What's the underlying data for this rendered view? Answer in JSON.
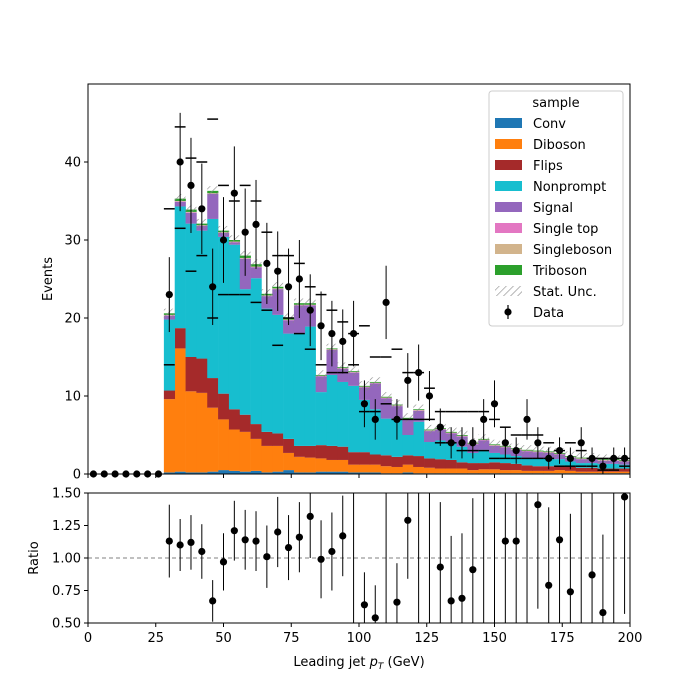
{
  "chart_data": {
    "type": "bar",
    "main": {
      "ylabel": "Events",
      "ylim": [
        0,
        50
      ],
      "yticks": [
        0,
        10,
        20,
        30,
        40
      ],
      "xlim": [
        0,
        200
      ]
    },
    "ratio": {
      "ylabel": "Ratio",
      "ylim": [
        0.5,
        1.5
      ],
      "yticks": [
        0.5,
        0.75,
        1.0,
        1.25,
        1.5
      ],
      "ytick_labels": [
        "0.50",
        "0.75",
        "1.00",
        "1.25",
        "1.50"
      ],
      "reference_line": 1.0
    },
    "xlabel": "Leading jet  p_T (GeV)",
    "xlabel_parts": {
      "pre": "Leading jet  ",
      "var": "p",
      "sub": "T",
      "post": " (GeV)"
    },
    "xticks": [
      0,
      25,
      50,
      75,
      100,
      125,
      150,
      175,
      200
    ],
    "legend": {
      "title": "sample",
      "placement": "upper-right",
      "entries": [
        {
          "name": "Conv",
          "kind": "patch",
          "color": "#1f77b4"
        },
        {
          "name": "Diboson",
          "kind": "patch",
          "color": "#ff7f0e"
        },
        {
          "name": "Flips",
          "kind": "patch",
          "color": "#a52a2a"
        },
        {
          "name": "Nonprompt",
          "kind": "patch",
          "color": "#17becf"
        },
        {
          "name": "Signal",
          "kind": "patch",
          "color": "#9467bd"
        },
        {
          "name": "Single top",
          "kind": "patch",
          "color": "#e377c2"
        },
        {
          "name": "Singleboson",
          "kind": "patch",
          "color": "#d2b48c"
        },
        {
          "name": "Triboson",
          "kind": "patch",
          "color": "#2ca02c"
        },
        {
          "name": "Stat. Unc.",
          "kind": "hatch",
          "color": "#888888"
        },
        {
          "name": "Data",
          "kind": "marker",
          "color": "#000000"
        }
      ]
    },
    "bin_width": 4,
    "bin_edges_start": 28,
    "series": [
      {
        "name": "Conv",
        "color": "#1f77b4",
        "values": [
          0.2,
          0.3,
          0.2,
          0.2,
          0.3,
          0.5,
          0.4,
          0.3,
          0.4,
          0.2,
          0.3,
          0.5,
          0.2,
          0.2,
          0.3,
          0.3,
          0.3,
          0.2,
          0.2,
          0.2,
          0.1,
          0.1,
          0.2,
          0.1,
          0.1,
          0.1,
          0.1,
          0.1,
          0.1,
          0.1,
          0.1,
          0.1,
          0.1,
          0.1,
          0.1,
          0.1,
          0.1,
          0.1,
          0.1,
          0.1,
          0.1,
          0.1,
          0.1
        ]
      },
      {
        "name": "Diboson",
        "color": "#ff7f0e",
        "values": [
          9.4,
          15.8,
          10.4,
          10.2,
          8.2,
          6.5,
          5.3,
          5.1,
          4.1,
          3.4,
          3.3,
          2.2,
          2.0,
          1.9,
          1.7,
          1.5,
          1.5,
          1.0,
          1.0,
          1.0,
          0.9,
          0.8,
          1.0,
          0.8,
          0.7,
          0.6,
          0.6,
          0.6,
          0.4,
          0.5,
          0.5,
          0.4,
          0.4,
          0.3,
          0.3,
          0.3,
          0.4,
          0.3,
          0.2,
          0.2,
          0.2,
          0.2,
          0.2
        ]
      },
      {
        "name": "Flips",
        "color": "#a52a2a",
        "values": [
          1.1,
          2.6,
          4.4,
          4.4,
          3.8,
          3.3,
          2.6,
          2.2,
          1.9,
          1.8,
          1.6,
          1.8,
          1.4,
          1.5,
          1.7,
          1.8,
          1.7,
          1.6,
          1.6,
          1.3,
          1.4,
          1.3,
          1.2,
          1.4,
          1.2,
          1.2,
          1.1,
          0.8,
          0.9,
          0.8,
          0.9,
          0.9,
          0.8,
          0.7,
          0.6,
          0.6,
          0.6,
          0.5,
          0.5,
          0.5,
          0.4,
          0.4,
          0.4
        ]
      },
      {
        "name": "Nonprompt",
        "color": "#17becf",
        "values": [
          9.1,
          15.6,
          17.1,
          16.4,
          20.4,
          20.1,
          21.1,
          16.1,
          18.7,
          15.8,
          15.2,
          13.5,
          14.4,
          15.3,
          6.8,
          9.1,
          8.3,
          8.5,
          6.7,
          5.8,
          4.7,
          4.9,
          2.6,
          4.4,
          2.1,
          2.4,
          2.2,
          2.0,
          1.3,
          1.7,
          1.2,
          1.1,
          1.0,
          1.0,
          1.0,
          1.0,
          0.8,
          0.7,
          0.6,
          0.6,
          0.6,
          0.6,
          0.5
        ]
      },
      {
        "name": "Signal",
        "color": "#9467bd",
        "values": [
          0.5,
          0.6,
          1.4,
          0.6,
          3.2,
          0.5,
          0.3,
          3.9,
          1.4,
          1.6,
          3.3,
          1.7,
          3.6,
          2.7,
          2.0,
          3.2,
          1.7,
          1.7,
          1.6,
          3.3,
          2.6,
          1.6,
          2.0,
          1.4,
          1.4,
          1.4,
          1.2,
          1.3,
          1.1,
          1.2,
          0.9,
          0.9,
          0.8,
          0.8,
          0.8,
          0.7,
          0.6,
          0.5,
          0.5,
          0.5,
          0.4,
          0.4,
          0.4
        ]
      },
      {
        "name": "Single top",
        "color": "#e377c2",
        "values": [
          0.05,
          0.05,
          0.05,
          0.05,
          0.05,
          0.05,
          0.05,
          0.05,
          0.05,
          0.05,
          0.05,
          0.05,
          0.05,
          0.05,
          0.05,
          0.05,
          0.05,
          0.05,
          0.05,
          0.05,
          0.05,
          0.05,
          0.05,
          0.05,
          0.05,
          0.05,
          0.05,
          0.05,
          0.05,
          0.05,
          0.05,
          0.05,
          0.05,
          0.05,
          0.05,
          0.05,
          0.05,
          0.05,
          0.05,
          0.05,
          0.05,
          0.05,
          0.05
        ]
      },
      {
        "name": "Singleboson",
        "color": "#d2b48c",
        "values": [
          0.05,
          0.05,
          0.05,
          0.05,
          0.05,
          0.05,
          0.05,
          0.05,
          0.05,
          0.05,
          0.05,
          0.05,
          0.05,
          0.05,
          0.05,
          0.05,
          0.05,
          0.05,
          0.05,
          0.05,
          0.05,
          0.05,
          0.05,
          0.05,
          0.05,
          0.05,
          0.05,
          0.05,
          0.05,
          0.05,
          0.05,
          0.05,
          0.05,
          0.05,
          0.05,
          0.05,
          0.05,
          0.05,
          0.05,
          0.05,
          0.05,
          0.05,
          0.05
        ]
      },
      {
        "name": "Triboson",
        "color": "#2ca02c",
        "values": [
          0.2,
          0.3,
          0.3,
          0.2,
          0.3,
          0.2,
          0.2,
          0.3,
          0.3,
          0.2,
          0.2,
          0.2,
          0.2,
          0.2,
          0.1,
          0.1,
          0.1,
          0.1,
          0.1,
          0.1,
          0.1,
          0.1,
          0.1,
          0.1,
          0.1,
          0.1,
          0.1,
          0.1,
          0.1,
          0.1,
          0.1,
          0.1,
          0.1,
          0.1,
          0.1,
          0.1,
          0.1,
          0.1,
          0.1,
          0.1,
          0.1,
          0.1,
          0.1
        ]
      }
    ],
    "data_points": {
      "x": [
        2,
        6,
        10,
        14,
        18,
        22,
        26,
        30,
        34,
        38,
        42,
        46,
        50,
        54,
        58,
        62,
        66,
        70,
        74,
        78,
        82,
        86,
        90,
        94,
        98,
        102,
        106,
        110,
        114,
        118,
        122,
        126,
        130,
        134,
        138,
        142,
        146,
        150,
        154,
        158,
        162,
        166,
        170,
        174,
        178,
        182,
        186,
        190,
        194,
        198
      ],
      "y": [
        0,
        0,
        0,
        0,
        0,
        0,
        0,
        23,
        40,
        37,
        34,
        24,
        30,
        36,
        31,
        32,
        27,
        26,
        24,
        25,
        21,
        19,
        18,
        17,
        18,
        9,
        7,
        22,
        7,
        12,
        13,
        10,
        6,
        4,
        4,
        4,
        7,
        9,
        4,
        3,
        7,
        4,
        2,
        3,
        2,
        4,
        2,
        1,
        2,
        2
      ],
      "yerr": [
        0,
        0,
        0,
        0,
        0,
        0,
        0,
        4.8,
        6.3,
        6.1,
        5.8,
        4.9,
        5.5,
        6.0,
        5.6,
        5.7,
        5.2,
        5.1,
        4.9,
        5.0,
        4.6,
        4.4,
        4.2,
        4.1,
        4.2,
        3.0,
        2.6,
        4.7,
        2.6,
        3.5,
        3.6,
        3.2,
        2.4,
        2.0,
        2.0,
        2.0,
        2.6,
        3.0,
        2.0,
        1.7,
        2.6,
        2.0,
        1.4,
        1.7,
        1.4,
        2.0,
        1.4,
        1.0,
        1.4,
        1.4
      ]
    },
    "unc_markers": {
      "x": [
        30,
        34,
        38,
        42,
        46,
        50,
        54,
        58,
        62,
        66,
        70,
        74,
        78,
        82,
        86,
        90,
        94,
        98,
        102,
        106,
        110,
        114,
        118,
        122,
        126,
        130,
        134,
        138,
        142,
        146,
        150,
        154,
        158,
        162,
        166,
        170,
        174,
        178,
        182,
        186,
        190,
        194,
        198
      ],
      "up": [
        34,
        44.5,
        40.5,
        40,
        45.5,
        37,
        35,
        37,
        35,
        31,
        28,
        28,
        27,
        24,
        23,
        21,
        19.5,
        18,
        19,
        15,
        15,
        16,
        13,
        13,
        11,
        8,
        8,
        8,
        8,
        8,
        7,
        6,
        5,
        5,
        5,
        4,
        3,
        4,
        3,
        2,
        2,
        2,
        2
      ],
      "down": [
        14,
        31.5,
        26,
        28,
        20,
        23,
        23,
        23,
        22,
        21,
        16.5,
        20,
        18,
        16,
        14,
        13,
        13,
        14,
        8,
        8,
        9,
        7,
        7,
        7,
        7,
        4,
        4,
        3,
        3,
        3,
        2,
        2,
        2,
        2,
        2,
        2,
        1,
        1,
        1,
        1,
        0.5,
        0.5,
        1
      ]
    },
    "ratio_points": {
      "x": [
        30,
        34,
        38,
        42,
        46,
        50,
        54,
        58,
        62,
        66,
        70,
        74,
        78,
        82,
        86,
        90,
        94,
        98,
        102,
        106,
        110,
        114,
        118,
        122,
        126,
        130,
        134,
        138,
        142,
        146,
        150,
        154,
        158,
        162,
        166,
        170,
        174,
        178,
        182,
        186,
        190,
        194,
        198
      ],
      "y": [
        1.13,
        1.1,
        1.12,
        1.05,
        0.67,
        0.97,
        1.21,
        1.14,
        1.13,
        1.01,
        1.2,
        1.08,
        1.16,
        1.32,
        0.99,
        1.05,
        1.17,
        null,
        0.64,
        0.54,
        null,
        0.66,
        1.29,
        null,
        null,
        0.93,
        0.67,
        0.69,
        0.91,
        null,
        null,
        1.13,
        1.13,
        null,
        1.41,
        0.79,
        1.14,
        0.74,
        null,
        0.87,
        0.58,
        null,
        1.47
      ],
      "yerr": [
        0.28,
        0.2,
        0.21,
        0.21,
        0.16,
        0.22,
        0.23,
        0.23,
        0.23,
        0.24,
        0.27,
        0.25,
        0.27,
        0.32,
        0.3,
        0.3,
        0.31,
        0.5,
        0.25,
        0.25,
        0.5,
        0.3,
        0.45,
        0.5,
        0.5,
        0.5,
        0.5,
        0.5,
        0.55,
        0.5,
        0.5,
        0.7,
        0.7,
        0.5,
        0.8,
        0.6,
        0.7,
        0.6,
        0.5,
        0.7,
        0.6,
        0.5,
        0.9
      ]
    }
  }
}
